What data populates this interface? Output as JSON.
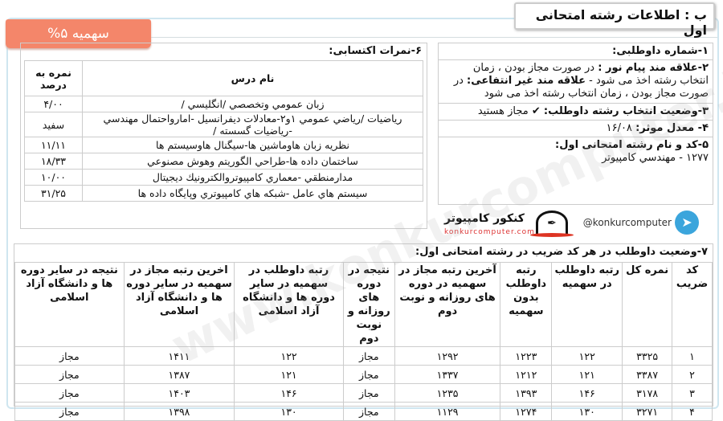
{
  "header": {
    "title": "ب : اطلاعات رشته امتحانی اول",
    "quota_badge": "سهمیه ۵%"
  },
  "candidate": {
    "item1": "۱-شماره داوطلبی:",
    "item2_label1": "۲-علاقه مند پیام نور :",
    "item2_text1": "در صورت مجاز بودن ، زمان انتخاب رشته اخذ می شود -",
    "item2_label2": "علاقه مند غیر انتفاعی:",
    "item2_text2": "در صورت مجاز بودن ، زمان انتخاب رشته اخذ می شود",
    "item3_label": "۳-وضعیت انتخاب رشته داوطلب:",
    "item3_value": "مجاز هستید",
    "item4_label": "۴- معدل موثر:",
    "item4_value": "۱۶/۰۸",
    "item5_label": "۵-کد و نام رشته امتحانی اول:",
    "item5_value": "۱۲۷۷ - مهندسي كامپيوتر"
  },
  "grades": {
    "title": "۶-نمرات اکتسابی:",
    "headers": [
      "نام درس",
      "نمره به درصد"
    ],
    "rows": [
      {
        "course": "زبان عمومي وتخصصي /انگليسي /",
        "score": "۴/۰۰"
      },
      {
        "course": "رياضيات /رياضي عمومي ۱و۲-معادلات ديفرانسيل -امارواحتمال مهندسي -رياضيات گسسته /",
        "score": "سفید"
      },
      {
        "course": "نظريه زبان هاوماشين ها-سيگنال هاوسيستم ها",
        "score": "۱۱/۱۱"
      },
      {
        "course": "ساختمان داده ها-طراحي الگوريتم وهوش مصنوعي",
        "score": "۱۸/۳۳"
      },
      {
        "course": "مدارمنطقي -معماري كامپيوتروالكترونيك ديجيتال",
        "score": "۱۰/۰۰"
      },
      {
        "course": "سيستم هاي عامل -شبكه هاي كامپيوتري وپايگاه داده ها",
        "score": "۳۱/۲۵"
      }
    ]
  },
  "branding": {
    "telegram_handle": "@konkurcomputer",
    "brand_name": "کنکور کامپیوتر",
    "brand_url": "konkurcomputer.com",
    "watermark": "www.konkurcomputer.ir"
  },
  "status": {
    "title": "۷-وضعیت داوطلب در هر کد ضریب در رشته امتحانی اول:",
    "headers": [
      "کد ضریب",
      "نمره کل",
      "رتبه داوطلب در سهمیه",
      "رتبه داوطلب بدون سهمیه",
      "آخرین رتبه مجاز در سهمیه در دوره های روزانه و نوبت دوم",
      "نتیجه در دوره های روزانه و نوبت دوم",
      "رتبه داوطلب در سهمیه در سایر دوره ها و دانشگاه آزاد اسلامی",
      "اخرین رتبه مجاز در سهمیه در سایر دوره ها و دانشگاه آزاد اسلامی",
      "نتیجه در سایر دوره ها و دانشگاه آزاد اسلامی"
    ],
    "rows": [
      [
        "۱",
        "۳۳۲۵",
        "۱۲۲",
        "۱۲۲۳",
        "۱۲۹۲",
        "مجاز",
        "۱۲۲",
        "۱۴۱۱",
        "مجاز"
      ],
      [
        "۲",
        "۳۳۸۷",
        "۱۲۱",
        "۱۲۱۲",
        "۱۳۳۷",
        "مجاز",
        "۱۲۱",
        "۱۳۸۷",
        "مجاز"
      ],
      [
        "۳",
        "۳۱۷۸",
        "۱۴۶",
        "۱۳۹۳",
        "۱۲۳۵",
        "مجاز",
        "۱۴۶",
        "۱۴۰۳",
        "مجاز"
      ],
      [
        "۴",
        "۳۲۷۱",
        "۱۳۰",
        "۱۲۷۴",
        "۱۱۲۹",
        "مجاز",
        "۱۳۰",
        "۱۳۹۸",
        "مجاز"
      ]
    ]
  }
}
